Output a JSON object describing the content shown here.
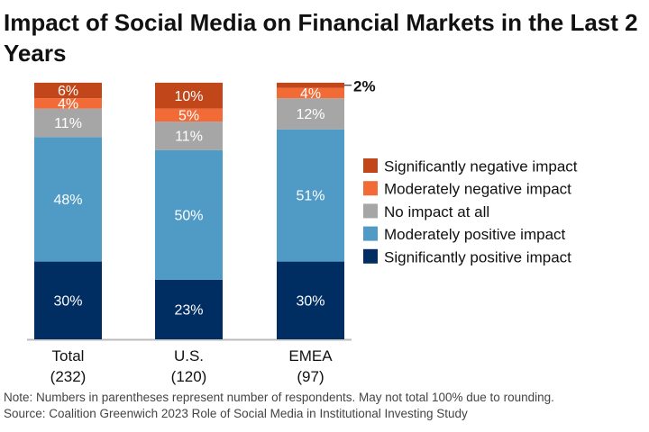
{
  "chart_data": {
    "type": "bar",
    "stacked": true,
    "title": "Impact of Social Media on Financial Markets in the Last 2 Years",
    "categories": [
      "Total",
      "U.S.",
      "EMEA"
    ],
    "category_counts": [
      "(232)",
      "(120)",
      "(97)"
    ],
    "series": [
      {
        "name": "Significantly positive impact",
        "color": "#002d62",
        "values": [
          30,
          23,
          30
        ]
      },
      {
        "name": "Moderately positive impact",
        "color": "#4f9bc6",
        "values": [
          48,
          50,
          51
        ]
      },
      {
        "name": "No impact at all",
        "color": "#a6a6a6",
        "values": [
          11,
          11,
          12
        ]
      },
      {
        "name": "Moderately negative impact",
        "color": "#f26a36",
        "values": [
          4,
          5,
          4
        ]
      },
      {
        "name": "Significantly negative impact",
        "color": "#c1461a",
        "values": [
          6,
          10,
          2
        ]
      }
    ],
    "value_suffix": "%",
    "legend_position": "right",
    "ylim": [
      0,
      100
    ],
    "grid": false
  },
  "notes": {
    "note": "Note: Numbers in parentheses represent number of respondents. May not total 100% due to rounding.",
    "source": "Source: Coalition Greenwich 2023 Role of Social Media in Institutional Investing Study"
  }
}
